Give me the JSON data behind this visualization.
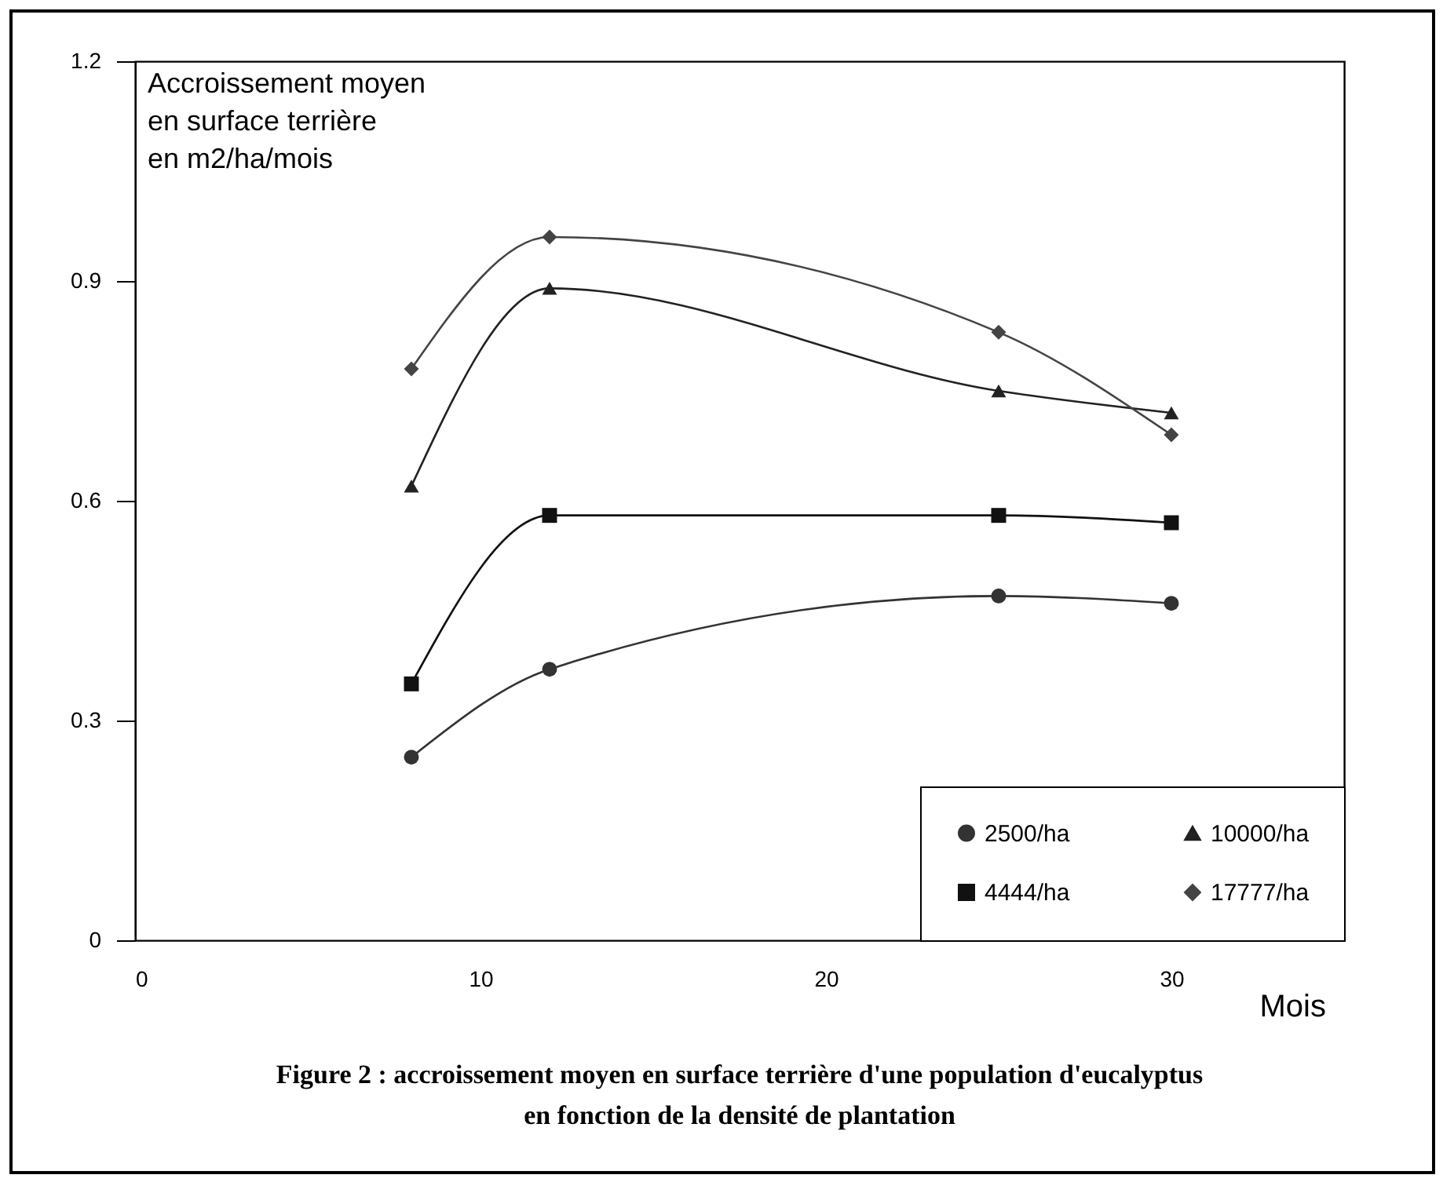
{
  "chart_data": {
    "type": "line",
    "title": "Figure  2 : accroissement moyen en surface terrière d'une population d'eucalyptus\nen fonction de la densité de plantation",
    "xlabel": "Mois",
    "ylabel": "Accroissement moyen\nen surface terrière\nen m2/ha/mois",
    "x": [
      8,
      12,
      25,
      30
    ],
    "series": [
      {
        "name": "2500/ha",
        "color": "#333333",
        "marker": "circle",
        "values": [
          0.25,
          0.37,
          0.47,
          0.46
        ]
      },
      {
        "name": "4444/ha",
        "color": "#111111",
        "marker": "square",
        "values": [
          0.35,
          0.58,
          0.58,
          0.57
        ]
      },
      {
        "name": "10000/ha",
        "color": "#222222",
        "marker": "triangle",
        "values": [
          0.62,
          0.89,
          0.75,
          0.72
        ]
      },
      {
        "name": "17777/ha",
        "color": "#444444",
        "marker": "diamond",
        "values": [
          0.78,
          0.96,
          0.83,
          0.69
        ]
      }
    ],
    "xlim": [
      0,
      35
    ],
    "xticks": [
      0,
      10,
      20,
      30
    ],
    "ylim": [
      0,
      1.2
    ],
    "yticks": [
      0,
      0.3,
      0.6,
      0.9,
      1.2
    ],
    "grid": false,
    "legend": "bottom right",
    "line_style": "solid"
  }
}
